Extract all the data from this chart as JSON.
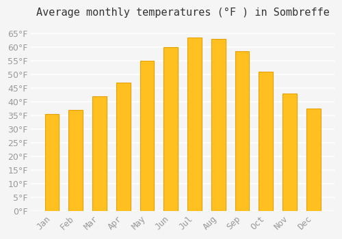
{
  "title": "Average monthly temperatures (°F ) in Sombreffe",
  "months": [
    "Jan",
    "Feb",
    "Mar",
    "Apr",
    "May",
    "Jun",
    "Jul",
    "Aug",
    "Sep",
    "Oct",
    "Nov",
    "Dec"
  ],
  "values": [
    35.5,
    37.0,
    42.0,
    47.0,
    55.0,
    60.0,
    63.5,
    63.0,
    58.5,
    51.0,
    43.0,
    37.5
  ],
  "bar_color": "#FFC020",
  "bar_edge_color": "#E8A000",
  "background_color": "#F5F5F5",
  "grid_color": "#FFFFFF",
  "text_color": "#999999",
  "ylim": [
    0,
    68
  ],
  "yticks": [
    0,
    5,
    10,
    15,
    20,
    25,
    30,
    35,
    40,
    45,
    50,
    55,
    60,
    65
  ],
  "title_fontsize": 11,
  "tick_fontsize": 9
}
